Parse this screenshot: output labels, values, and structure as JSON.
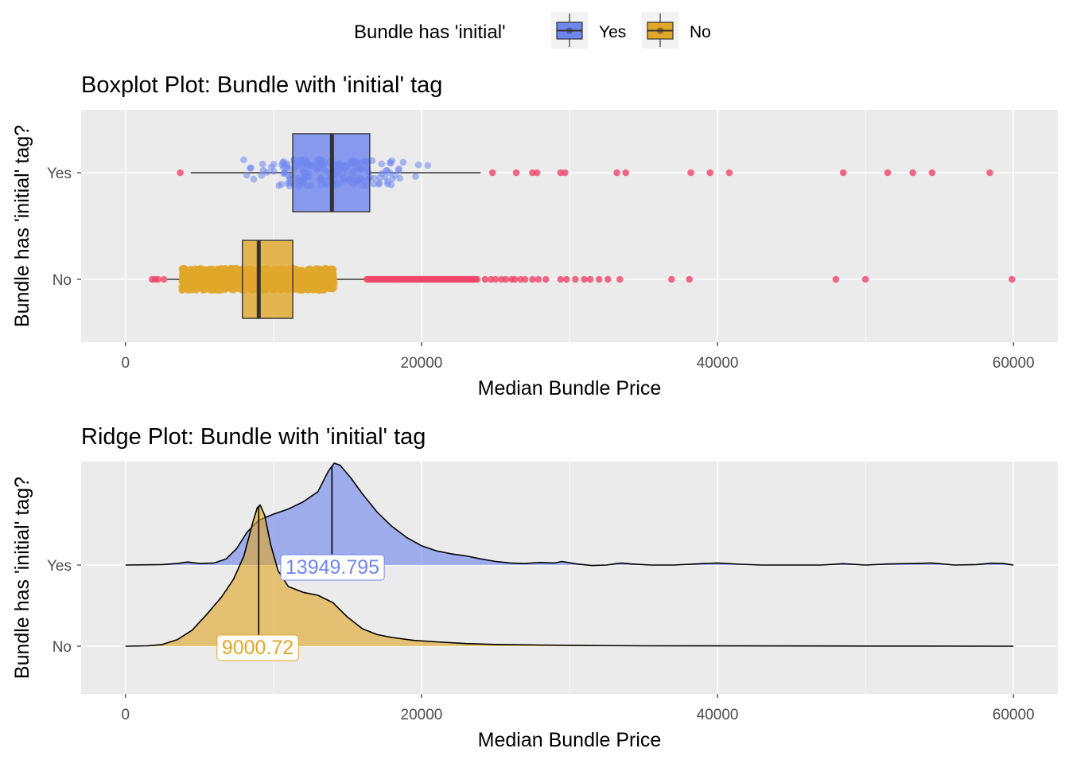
{
  "legend": {
    "title": "Bundle has 'initial'",
    "items": [
      {
        "label": "Yes",
        "color": "#6f86ee"
      },
      {
        "label": "No",
        "color": "#e0a72a"
      }
    ]
  },
  "chart_data": [
    {
      "type": "boxplot",
      "title": "Boxplot Plot: Bundle with 'initial' tag",
      "xlabel": "Median Bundle Price",
      "ylabel": "Bundle has 'initial' tag?",
      "xlim": [
        -3000,
        63000
      ],
      "xticks": [
        0,
        20000,
        40000,
        60000
      ],
      "categories": [
        "Yes",
        "No"
      ],
      "grid": true,
      "outlier_color": "#f0456b",
      "series": [
        {
          "name": "Yes",
          "color": "#6f86ee",
          "whisker_low": 4400,
          "q1": 11300,
          "median": 13950,
          "q3": 16500,
          "whisker_high": 24000,
          "jitter_range": [
            6500,
            22000
          ],
          "outliers": [
            3700,
            24800,
            26400,
            27500,
            27800,
            29400,
            29700,
            33200,
            33800,
            38200,
            39500,
            40800,
            48500,
            51500,
            53200,
            54500,
            58400
          ]
        },
        {
          "name": "No",
          "color": "#e0a72a",
          "whisker_low": 2800,
          "q1": 7900,
          "median": 9000.72,
          "q3": 11300,
          "whisker_high": 16200,
          "jitter_range": [
            3800,
            14100
          ],
          "outliers": [
            1800,
            2000,
            2200,
            2600,
            24300,
            24700,
            25000,
            25400,
            25700,
            26100,
            26300,
            26700,
            27000,
            27500,
            27900,
            28400,
            29400,
            29800,
            30400,
            31000,
            31400,
            32000,
            32600,
            33400,
            36900,
            38100,
            48000,
            50000,
            59900
          ],
          "outlier_dense_range": [
            16300,
            23800
          ]
        }
      ]
    },
    {
      "type": "ridge",
      "title": "Ridge Plot: Bundle with 'initial' tag",
      "xlabel": "Median Bundle Price",
      "ylabel": "Bundle has 'initial' tag?",
      "xlim": [
        -3000,
        63000
      ],
      "xticks": [
        0,
        20000,
        40000,
        60000
      ],
      "categories": [
        "Yes",
        "No"
      ],
      "grid": true,
      "series": [
        {
          "name": "Yes",
          "color": "#6f86ee",
          "median": 13949.795,
          "median_label": "13949.795",
          "density": [
            [
              0,
              0
            ],
            [
              2500,
              0.005
            ],
            [
              3500,
              0.015
            ],
            [
              4200,
              0.03
            ],
            [
              5000,
              0.015
            ],
            [
              6000,
              0.02
            ],
            [
              6800,
              0.06
            ],
            [
              7500,
              0.16
            ],
            [
              8200,
              0.32
            ],
            [
              9000,
              0.44
            ],
            [
              10000,
              0.5
            ],
            [
              11000,
              0.55
            ],
            [
              12000,
              0.62
            ],
            [
              13000,
              0.72
            ],
            [
              13700,
              0.92
            ],
            [
              14100,
              1.0
            ],
            [
              14500,
              0.98
            ],
            [
              15200,
              0.86
            ],
            [
              16000,
              0.7
            ],
            [
              17000,
              0.52
            ],
            [
              18000,
              0.38
            ],
            [
              19000,
              0.27
            ],
            [
              20000,
              0.19
            ],
            [
              21000,
              0.14
            ],
            [
              22000,
              0.11
            ],
            [
              23000,
              0.09
            ],
            [
              24000,
              0.06
            ],
            [
              25000,
              0.035
            ],
            [
              26000,
              0.02
            ],
            [
              27000,
              0.015
            ],
            [
              28000,
              0.025
            ],
            [
              29000,
              0.02
            ],
            [
              29500,
              0.035
            ],
            [
              30500,
              0.01
            ],
            [
              31500,
              -0.005
            ],
            [
              32500,
              0.0
            ],
            [
              33500,
              0.02
            ],
            [
              34200,
              0.01
            ],
            [
              35500,
              0.0
            ],
            [
              37000,
              0.0
            ],
            [
              38500,
              0.01
            ],
            [
              40000,
              0.02
            ],
            [
              41500,
              0.008
            ],
            [
              43000,
              0.0
            ],
            [
              45000,
              0.0
            ],
            [
              47000,
              0.0
            ],
            [
              48500,
              0.013
            ],
            [
              50000,
              0.0
            ],
            [
              51500,
              0.01
            ],
            [
              53000,
              0.014
            ],
            [
              54500,
              0.02
            ],
            [
              56000,
              0.0
            ],
            [
              57500,
              0.005
            ],
            [
              58500,
              0.018
            ],
            [
              59300,
              0.015
            ],
            [
              60000,
              0.0
            ]
          ]
        },
        {
          "name": "No",
          "color": "#e0a72a",
          "median": 9000.72,
          "median_label": "9000.72",
          "density": [
            [
              0,
              0
            ],
            [
              1500,
              0.003
            ],
            [
              2500,
              0.012
            ],
            [
              3500,
              0.045
            ],
            [
              4500,
              0.11
            ],
            [
              5500,
              0.22
            ],
            [
              6500,
              0.34
            ],
            [
              7300,
              0.46
            ],
            [
              8000,
              0.62
            ],
            [
              8600,
              0.85
            ],
            [
              8900,
              0.95
            ],
            [
              9100,
              0.97
            ],
            [
              9400,
              0.9
            ],
            [
              9800,
              0.7
            ],
            [
              10300,
              0.52
            ],
            [
              11000,
              0.41
            ],
            [
              12000,
              0.37
            ],
            [
              13000,
              0.35
            ],
            [
              14000,
              0.3
            ],
            [
              15000,
              0.2
            ],
            [
              16000,
              0.12
            ],
            [
              17000,
              0.08
            ],
            [
              18000,
              0.06
            ],
            [
              19500,
              0.04
            ],
            [
              21000,
              0.03
            ],
            [
              23000,
              0.018
            ],
            [
              25000,
              0.012
            ],
            [
              28000,
              0.008
            ],
            [
              31000,
              0.005
            ],
            [
              35000,
              0.003
            ],
            [
              40000,
              0.002
            ],
            [
              50000,
              0.001
            ],
            [
              60000,
              0.0
            ]
          ]
        }
      ]
    }
  ]
}
